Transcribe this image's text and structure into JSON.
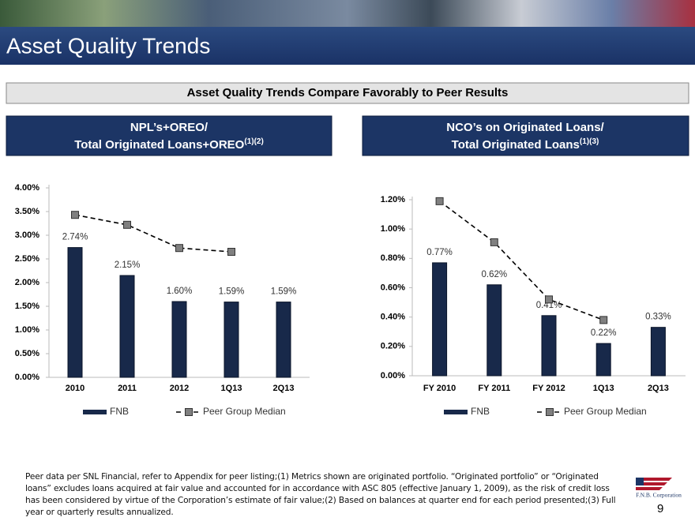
{
  "slide_title": "Asset Quality Trends",
  "banner": "Asset Quality Trends Compare Favorably to Peer Results",
  "footnote": "Peer data per SNL Financial, refer to Appendix for peer listing;(1) Metrics shown are originated portfolio. “Originated portfolio” or “Originated loans” excludes loans acquired at fair value and accounted for in accordance with ASC 805 (effective January 1, 2009), as the risk of credit loss has been considered by virtue of the Corporation’s estimate of fair value;(2) Based on balances at quarter end for each period presented;(3) Full year or quarterly results annualized.",
  "logo_text": "F.N.B. Corporation",
  "page_number": "9",
  "chart_data": [
    {
      "type": "bar",
      "title_lines": [
        "NPL’s+OREO/",
        "Total Originated Loans+OREO"
      ],
      "title_superscript": "(1)(2)",
      "categories": [
        "2010",
        "2011",
        "2012",
        "1Q13",
        "2Q13"
      ],
      "series": [
        {
          "name": "FNB",
          "color": "#18294a",
          "values": [
            2.74,
            2.15,
            1.6,
            1.59,
            1.59
          ],
          "value_labels": [
            "2.74%",
            "2.15%",
            "1.60%",
            "1.59%",
            "1.59%"
          ]
        },
        {
          "name": "Peer Group Median",
          "type": "line",
          "color": "#808080",
          "values": [
            3.43,
            3.22,
            2.73,
            2.65,
            null
          ]
        }
      ],
      "ylim": [
        0,
        4
      ],
      "yticks": [
        {
          "value": 0,
          "label": "0.00%"
        },
        {
          "value": 0.5,
          "label": "0.50%"
        },
        {
          "value": 1,
          "label": "1.00%"
        },
        {
          "value": 1.5,
          "label": "1.50%"
        },
        {
          "value": 2,
          "label": "2.00%"
        },
        {
          "value": 2.5,
          "label": "2.50%"
        },
        {
          "value": 3,
          "label": "3.00%"
        },
        {
          "value": 3.5,
          "label": "3.50%"
        },
        {
          "value": 4,
          "label": "4.00%"
        }
      ]
    },
    {
      "type": "bar",
      "title_lines": [
        "NCO’s on Originated Loans/",
        "Total Originated Loans"
      ],
      "title_superscript": "(1)(3)",
      "categories": [
        "FY 2010",
        "FY 2011",
        "FY 2012",
        "1Q13",
        "2Q13"
      ],
      "series": [
        {
          "name": "FNB",
          "color": "#18294a",
          "values": [
            0.77,
            0.62,
            0.41,
            0.22,
            0.33
          ],
          "value_labels": [
            "0.77%",
            "0.62%",
            "0.41%",
            "0.22%",
            "0.33%"
          ]
        },
        {
          "name": "Peer Group Median",
          "type": "line",
          "color": "#808080",
          "values": [
            1.19,
            0.91,
            0.52,
            0.38,
            null
          ]
        }
      ],
      "ylim": [
        0,
        1.2
      ],
      "yticks": [
        {
          "value": 0,
          "label": "0.00%"
        },
        {
          "value": 0.2,
          "label": "0.20%"
        },
        {
          "value": 0.4,
          "label": "0.40%"
        },
        {
          "value": 0.6,
          "label": "0.60%"
        },
        {
          "value": 0.8,
          "label": "0.80%"
        },
        {
          "value": 1,
          "label": "1.00%"
        },
        {
          "value": 1.2,
          "label": "1.20%"
        }
      ]
    }
  ]
}
